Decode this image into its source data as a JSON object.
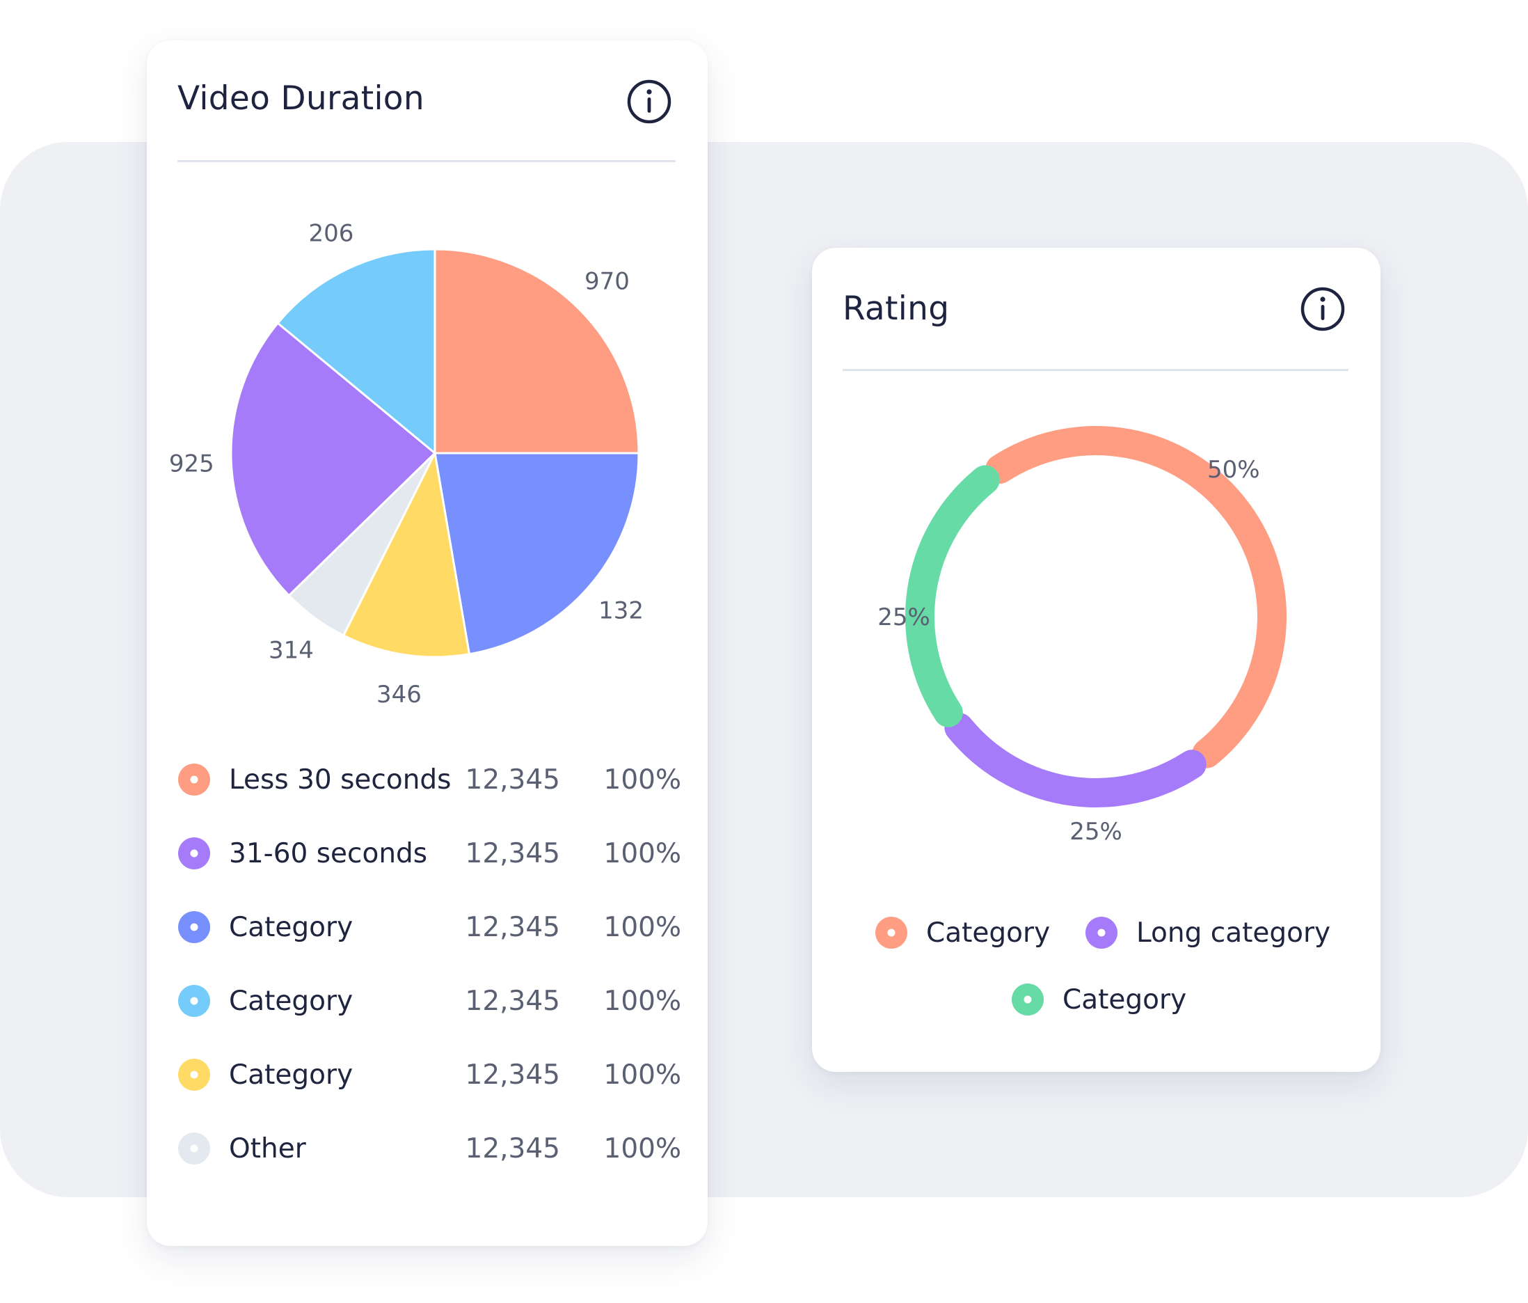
{
  "video_duration": {
    "title": "Video Duration",
    "info_icon": "info-icon",
    "legend": [
      {
        "label": "Less 30 seconds",
        "value": "12,345",
        "percent": "100%",
        "color": "#ff9d82"
      },
      {
        "label": "31-60 seconds",
        "value": "12,345",
        "percent": "100%",
        "color": "#a57bfa"
      },
      {
        "label": "Category",
        "value": "12,345",
        "percent": "100%",
        "color": "#788ffe"
      },
      {
        "label": "Category",
        "value": "12,345",
        "percent": "100%",
        "color": "#75cbfa"
      },
      {
        "label": "Category",
        "value": "12,345",
        "percent": "100%",
        "color": "#ffdb66"
      },
      {
        "label": "Other",
        "value": "12,345",
        "percent": "100%",
        "color": "#e4e8ef"
      }
    ]
  },
  "rating": {
    "title": "Rating",
    "info_icon": "info-icon",
    "legend": [
      {
        "label": "Category",
        "color": "#ff9d82"
      },
      {
        "label": "Long category",
        "color": "#a57bfa"
      },
      {
        "label": "Category",
        "color": "#66dba6"
      }
    ]
  },
  "chart_data": [
    {
      "type": "pie",
      "title": "Video Duration",
      "slices": [
        {
          "label": "970",
          "value": 25.0,
          "color": "#ff9d82"
        },
        {
          "label": "132",
          "value": 22.3,
          "color": "#788ffe"
        },
        {
          "label": "346",
          "value": 10.1,
          "color": "#ffdb66"
        },
        {
          "label": "314",
          "value": 5.3,
          "color": "#e4e8ef"
        },
        {
          "label": "925",
          "value": 23.3,
          "color": "#a57bfa"
        },
        {
          "label": "206",
          "value": 14.0,
          "color": "#75cbfa"
        }
      ]
    },
    {
      "type": "pie",
      "subtype": "donut",
      "title": "Rating",
      "slices": [
        {
          "label": "50%",
          "value": 50,
          "color": "#ff9d82"
        },
        {
          "label": "25%",
          "value": 25,
          "color": "#a57bfa"
        },
        {
          "label": "25%",
          "value": 25,
          "color": "#66dba6"
        }
      ]
    }
  ]
}
